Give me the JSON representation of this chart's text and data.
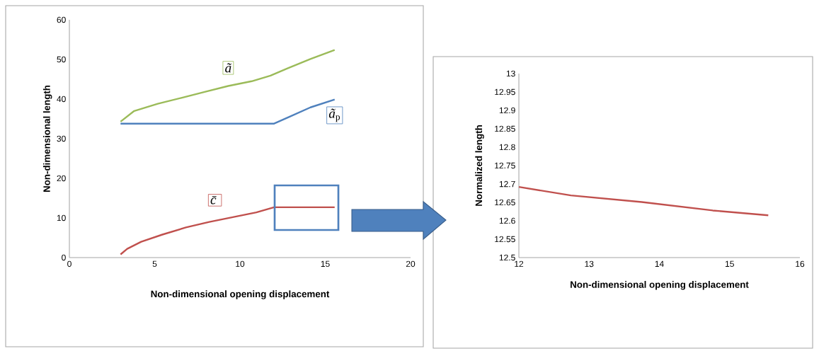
{
  "chart_data": [
    {
      "type": "line",
      "xlabel": "Non-dimensional opening displacement",
      "ylabel": "Non-dimensional length",
      "xlim": [
        0,
        20
      ],
      "ylim": [
        0,
        60
      ],
      "xticks": [
        0,
        5,
        10,
        15,
        20
      ],
      "yticks": [
        0,
        10,
        20,
        30,
        40,
        50,
        60
      ],
      "series": [
        {
          "name": "*ã*",
          "color": "#9bbb59",
          "x": [
            3.0,
            3.8,
            5.18,
            6.56,
            7.93,
            9.31,
            10.69,
            11.79,
            12.76,
            14.13,
            15.55
          ],
          "values": [
            34.3,
            37.0,
            38.8,
            40.3,
            41.8,
            43.3,
            44.5,
            45.9,
            47.7,
            50.1,
            52.4
          ]
        },
        {
          "name": "*ã*$_{p}$",
          "color": "#4f81bd",
          "x": [
            3.0,
            12.0,
            12.89,
            14.13,
            15.55
          ],
          "values": [
            33.8,
            33.8,
            35.5,
            37.9,
            39.9
          ]
        },
        {
          "name": "*c̄*",
          "color": "#c0504d",
          "x": [
            3.0,
            3.39,
            4.21,
            5.45,
            6.83,
            8.2,
            9.58,
            10.96,
            12.0,
            15.55
          ],
          "values": [
            0.8,
            2.2,
            4.0,
            5.8,
            7.6,
            9.0,
            10.2,
            11.4,
            12.7,
            12.7
          ]
        }
      ]
    },
    {
      "type": "line",
      "xlabel": "Non-dimensional opening displacement",
      "ylabel": "Normalized length",
      "xlim": [
        12,
        16
      ],
      "ylim": [
        12.5,
        13
      ],
      "xticks": [
        12,
        13,
        14,
        15,
        16
      ],
      "yticks": [
        12.5,
        12.55,
        12.6,
        12.65,
        12.7,
        12.75,
        12.8,
        12.85,
        12.9,
        12.95,
        13
      ],
      "series": [
        {
          "color": "#c0504d",
          "x": [
            12.0,
            12.74,
            13.75,
            14.76,
            15.55
          ],
          "values": [
            12.692,
            12.669,
            12.651,
            12.628,
            12.615
          ]
        }
      ]
    }
  ]
}
